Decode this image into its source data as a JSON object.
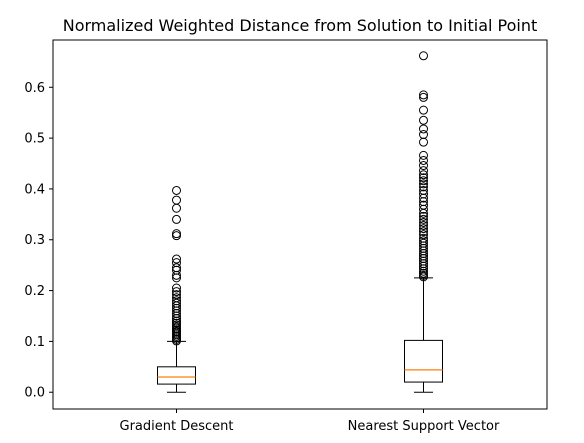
{
  "chart_data": {
    "type": "box",
    "title": "Normalized Weighted Distance from Solution to Initial Point",
    "xlabel": "",
    "ylabel": "",
    "ylim": [
      -0.033,
      0.693
    ],
    "yticks": [
      {
        "value": 0.0,
        "label": "0.0"
      },
      {
        "value": 0.1,
        "label": "0.1"
      },
      {
        "value": 0.2,
        "label": "0.2"
      },
      {
        "value": 0.3,
        "label": "0.3"
      },
      {
        "value": 0.4,
        "label": "0.4"
      },
      {
        "value": 0.5,
        "label": "0.5"
      },
      {
        "value": 0.6,
        "label": "0.6"
      }
    ],
    "grid": false,
    "colors": {
      "box": "#000000",
      "median": "#ff7f0e",
      "flier": "#000000"
    },
    "categories": [
      "Gradient Descent",
      "Nearest Support Vector"
    ],
    "series": [
      {
        "whisker_low": 0.0,
        "q1": 0.016,
        "median": 0.03,
        "q3": 0.05,
        "whisker_high": 0.1,
        "outliers": [
          0.101,
          0.104,
          0.107,
          0.11,
          0.113,
          0.116,
          0.119,
          0.122,
          0.125,
          0.128,
          0.132,
          0.136,
          0.14,
          0.145,
          0.15,
          0.155,
          0.16,
          0.165,
          0.17,
          0.175,
          0.18,
          0.186,
          0.192,
          0.198,
          0.205,
          0.225,
          0.23,
          0.24,
          0.245,
          0.255,
          0.262,
          0.308,
          0.312,
          0.34,
          0.362,
          0.378,
          0.397
        ]
      },
      {
        "whisker_low": 0.0,
        "q1": 0.02,
        "median": 0.044,
        "q3": 0.102,
        "whisker_high": 0.225,
        "outliers": [
          0.227,
          0.23,
          0.234,
          0.238,
          0.243,
          0.248,
          0.253,
          0.258,
          0.263,
          0.268,
          0.273,
          0.278,
          0.283,
          0.288,
          0.293,
          0.298,
          0.303,
          0.31,
          0.316,
          0.322,
          0.328,
          0.334,
          0.34,
          0.346,
          0.352,
          0.36,
          0.368,
          0.375,
          0.382,
          0.39,
          0.397,
          0.404,
          0.41,
          0.416,
          0.422,
          0.428,
          0.436,
          0.446,
          0.456,
          0.466,
          0.492,
          0.507,
          0.518,
          0.535,
          0.555,
          0.58,
          0.585,
          0.662
        ]
      }
    ]
  }
}
